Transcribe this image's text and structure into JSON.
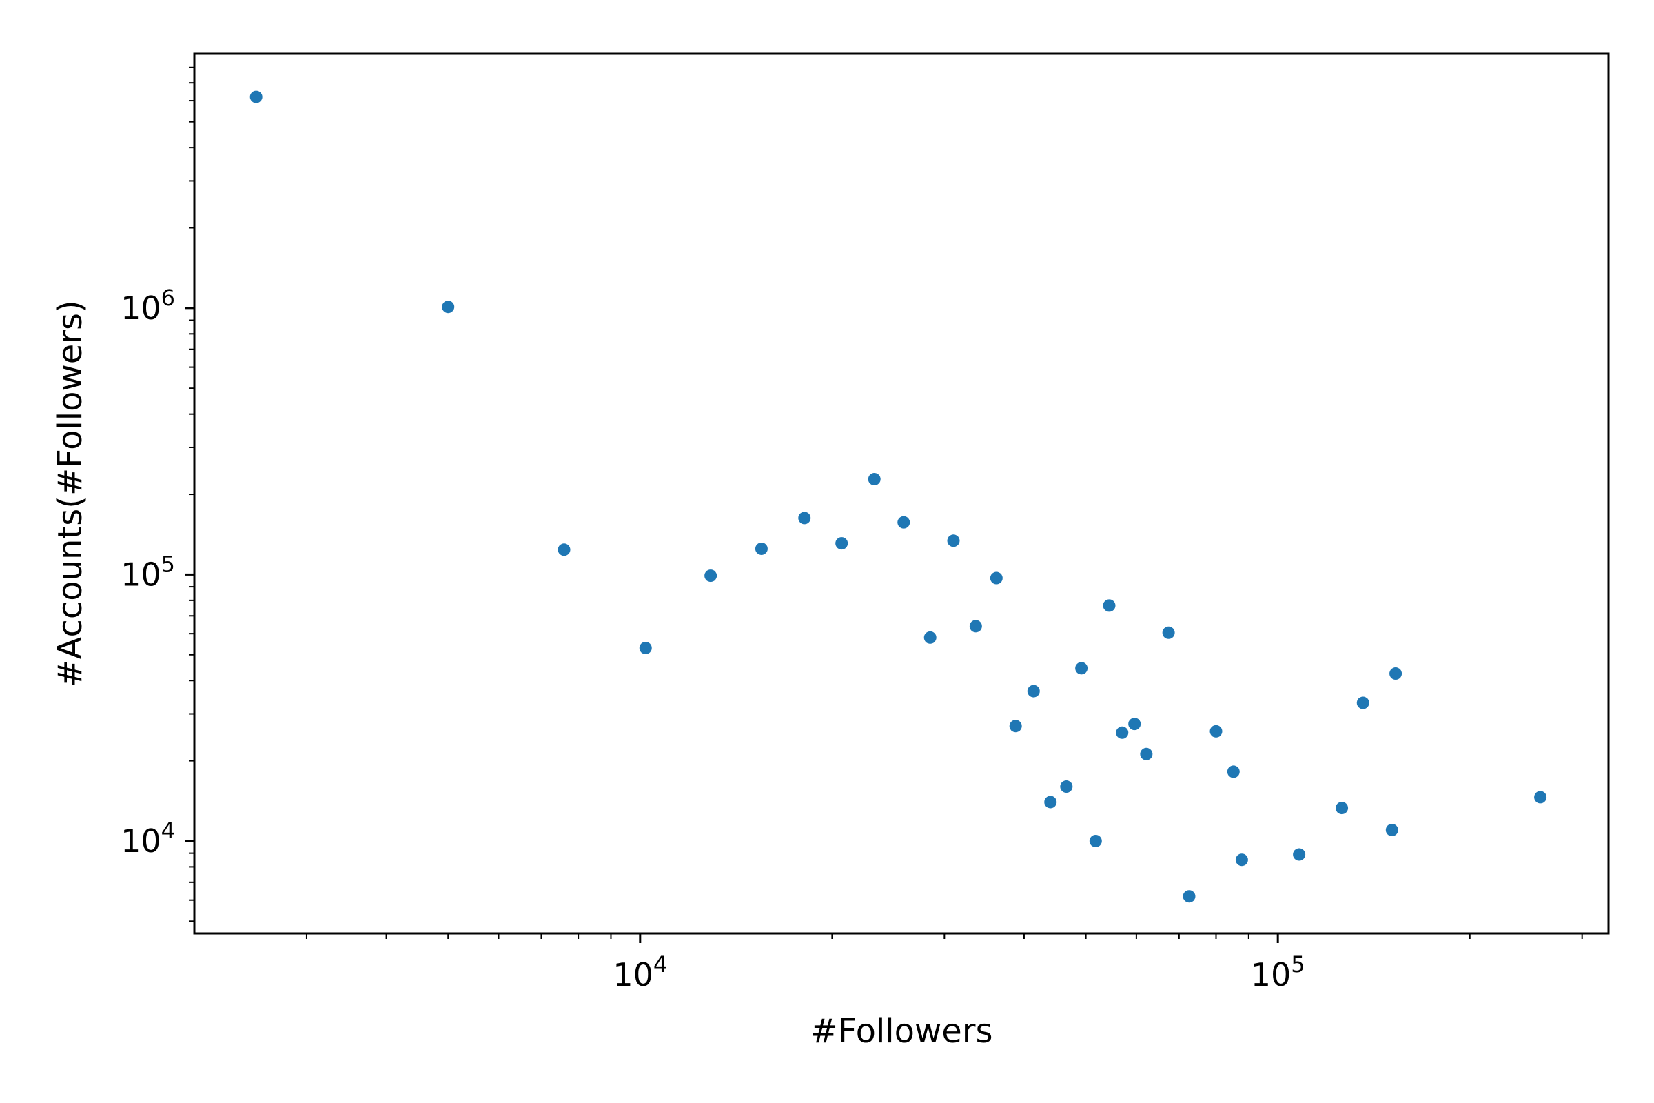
{
  "chart_data": {
    "type": "scatter",
    "title": "",
    "xlabel": "#Followers",
    "ylabel": "#Accounts(#Followers)",
    "xscale": "log",
    "yscale": "log",
    "xlim": [
      2000,
      330000
    ],
    "ylim": [
      4500,
      9000000
    ],
    "x_major_ticks": [
      {
        "value": 10000,
        "base": "10",
        "exp": "4"
      },
      {
        "value": 100000,
        "base": "10",
        "exp": "5"
      }
    ],
    "y_major_ticks": [
      {
        "value": 10000,
        "base": "10",
        "exp": "4"
      },
      {
        "value": 100000,
        "base": "10",
        "exp": "5"
      },
      {
        "value": 1000000,
        "base": "10",
        "exp": "6"
      }
    ],
    "grid": false,
    "legend": "none",
    "marker_color": "#1f77b4",
    "series": [
      {
        "points": [
          {
            "x": 2500,
            "y": 6200000
          },
          {
            "x": 5000,
            "y": 1010000
          },
          {
            "x": 7600,
            "y": 124000
          },
          {
            "x": 10200,
            "y": 53000
          },
          {
            "x": 12900,
            "y": 99000
          },
          {
            "x": 15500,
            "y": 125000
          },
          {
            "x": 18100,
            "y": 163000
          },
          {
            "x": 20700,
            "y": 131000
          },
          {
            "x": 23300,
            "y": 228000
          },
          {
            "x": 25900,
            "y": 157000
          },
          {
            "x": 28500,
            "y": 58000
          },
          {
            "x": 31000,
            "y": 134000
          },
          {
            "x": 33600,
            "y": 64000
          },
          {
            "x": 36200,
            "y": 97000
          },
          {
            "x": 38800,
            "y": 27000
          },
          {
            "x": 41400,
            "y": 36500
          },
          {
            "x": 44000,
            "y": 14000
          },
          {
            "x": 46600,
            "y": 16000
          },
          {
            "x": 49200,
            "y": 44500
          },
          {
            "x": 51800,
            "y": 10000
          },
          {
            "x": 54400,
            "y": 76500
          },
          {
            "x": 57000,
            "y": 25500
          },
          {
            "x": 59600,
            "y": 27500
          },
          {
            "x": 62200,
            "y": 21200
          },
          {
            "x": 67400,
            "y": 60500
          },
          {
            "x": 72600,
            "y": 6200
          },
          {
            "x": 80000,
            "y": 25800
          },
          {
            "x": 85200,
            "y": 18200
          },
          {
            "x": 87800,
            "y": 8500
          },
          {
            "x": 108000,
            "y": 8900
          },
          {
            "x": 126000,
            "y": 13300
          },
          {
            "x": 136000,
            "y": 33000
          },
          {
            "x": 151000,
            "y": 11000
          },
          {
            "x": 153000,
            "y": 42500
          },
          {
            "x": 258000,
            "y": 14600
          }
        ]
      }
    ]
  }
}
